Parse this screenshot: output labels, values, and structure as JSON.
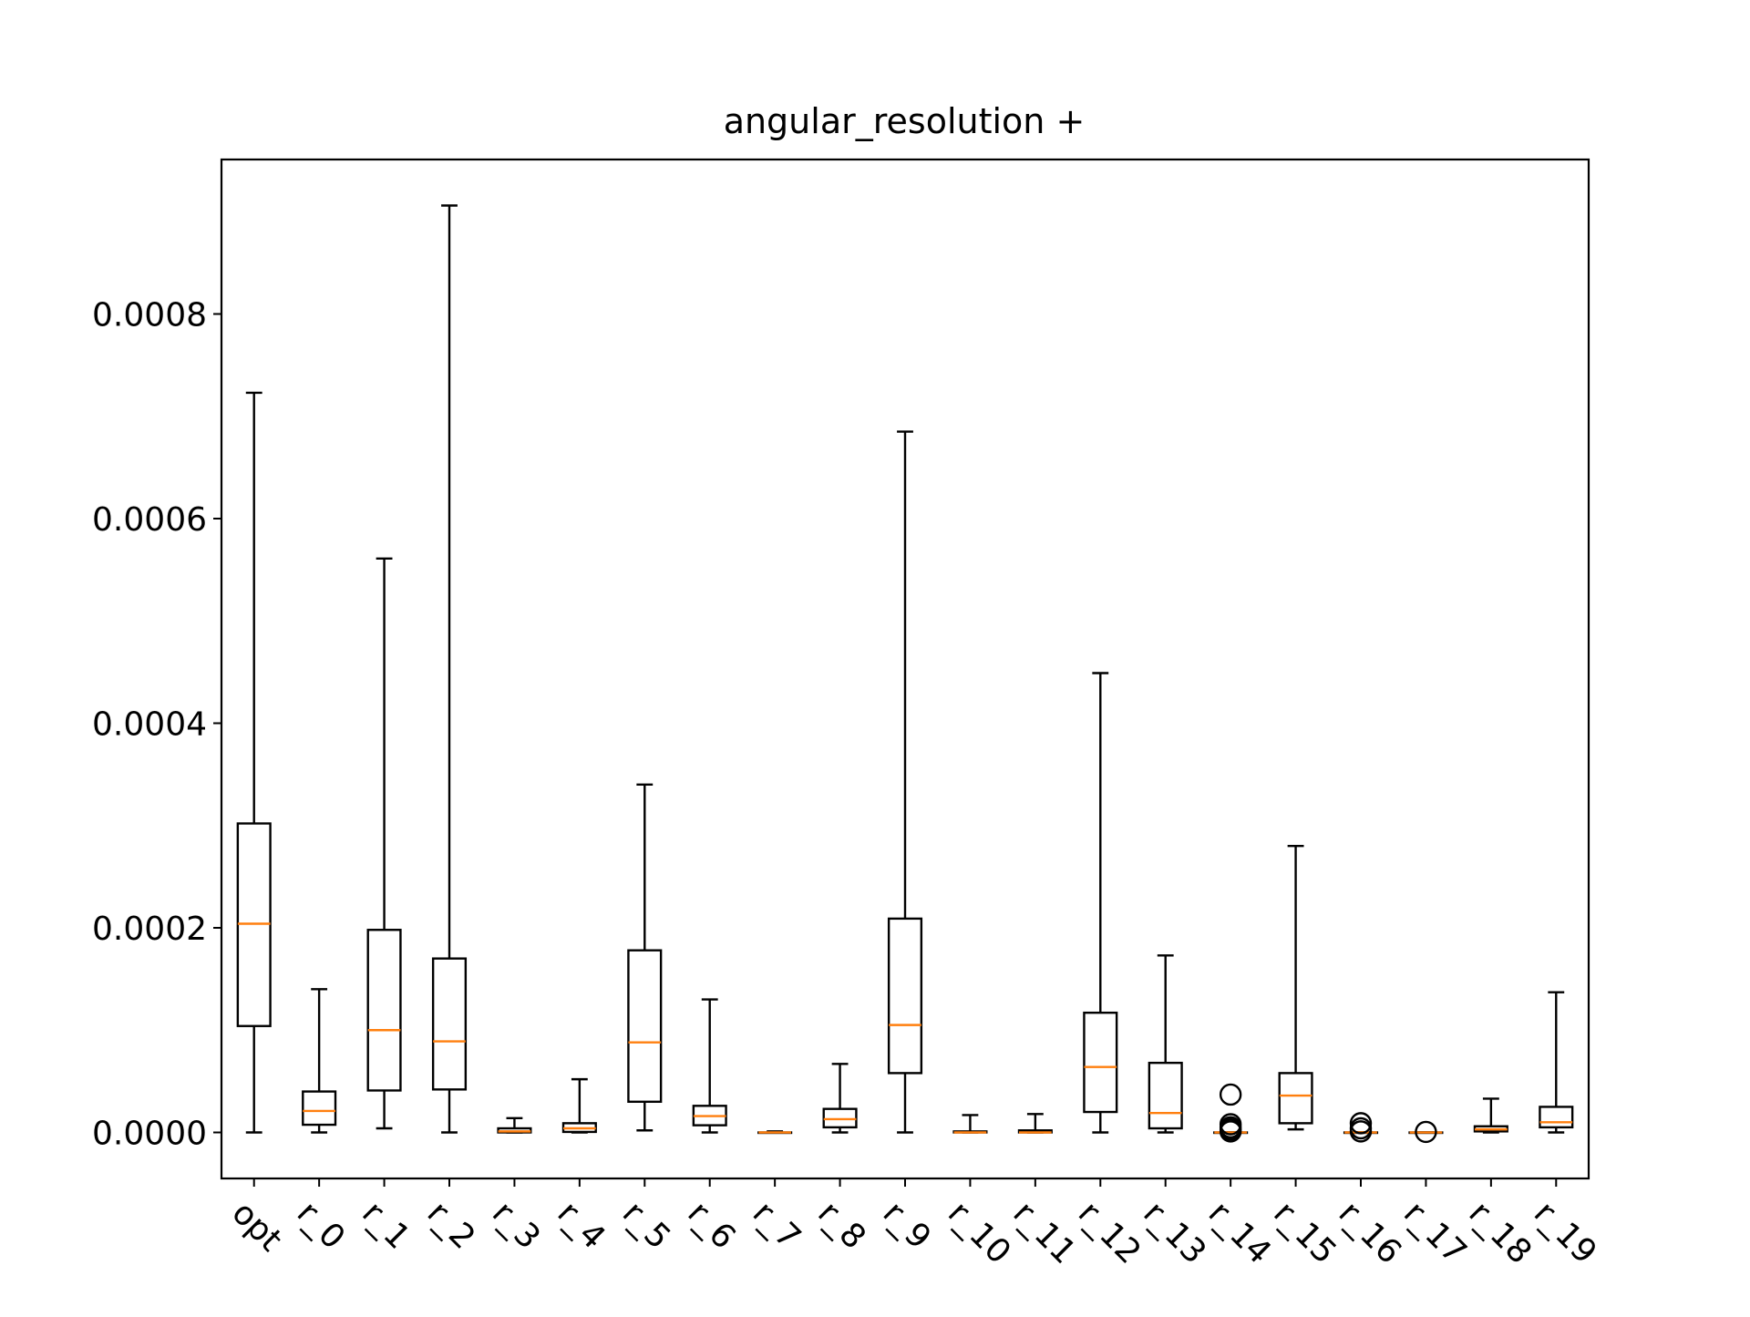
{
  "chart_data": {
    "type": "box",
    "title": "angular_resolution +",
    "xlabel": "",
    "ylabel": "",
    "ylim": [
      -4.5e-05,
      0.000951
    ],
    "yticks": [
      0,
      0.0002,
      0.0004,
      0.0006,
      0.0008
    ],
    "ytick_labels": [
      "0.0000",
      "0.0002",
      "0.0004",
      "0.0006",
      "0.0008"
    ],
    "grid": false,
    "categories": [
      "opt",
      "r_0",
      "r_1",
      "r_2",
      "r_3",
      "r_4",
      "r_5",
      "r_6",
      "r_7",
      "r_8",
      "r_9",
      "r_10",
      "r_11",
      "r_12",
      "r_13",
      "r_14",
      "r_15",
      "r_16",
      "r_17",
      "r_18",
      "r_19"
    ],
    "boxes": [
      {
        "whislo": 0.0,
        "q1": 0.000104,
        "med": 0.000204,
        "q3": 0.000302,
        "whishi": 0.000723,
        "fliers": []
      },
      {
        "whislo": 0.0,
        "q1": 7.5e-06,
        "med": 2.1e-05,
        "q3": 4e-05,
        "whishi": 0.00014,
        "fliers": []
      },
      {
        "whislo": 4e-06,
        "q1": 4.1e-05,
        "med": 0.0001,
        "q3": 0.000198,
        "whishi": 0.000561,
        "fliers": []
      },
      {
        "whislo": 0.0,
        "q1": 4.2e-05,
        "med": 8.9e-05,
        "q3": 0.00017,
        "whishi": 0.000906,
        "fliers": []
      },
      {
        "whislo": 0.0,
        "q1": 0.0,
        "med": 1e-06,
        "q3": 4e-06,
        "whishi": 1.4e-05,
        "fliers": []
      },
      {
        "whislo": 0.0,
        "q1": 5e-07,
        "med": 4e-06,
        "q3": 9e-06,
        "whishi": 5.2e-05,
        "fliers": []
      },
      {
        "whislo": 2e-06,
        "q1": 3e-05,
        "med": 8.8e-05,
        "q3": 0.000178,
        "whishi": 0.00034,
        "fliers": []
      },
      {
        "whislo": 0.0,
        "q1": 7e-06,
        "med": 1.6e-05,
        "q3": 2.6e-05,
        "whishi": 0.00013,
        "fliers": []
      },
      {
        "whislo": 0.0,
        "q1": 0.0,
        "med": 0.0,
        "q3": 0.0,
        "whishi": 1e-06,
        "fliers": []
      },
      {
        "whislo": 0.0,
        "q1": 5e-06,
        "med": 1.3e-05,
        "q3": 2.3e-05,
        "whishi": 6.7e-05,
        "fliers": []
      },
      {
        "whislo": 0.0,
        "q1": 5.8e-05,
        "med": 0.000105,
        "q3": 0.000209,
        "whishi": 0.000685,
        "fliers": []
      },
      {
        "whislo": 0.0,
        "q1": 0.0,
        "med": 0.0,
        "q3": 1e-06,
        "whishi": 1.7e-05,
        "fliers": []
      },
      {
        "whislo": 0.0,
        "q1": 0.0,
        "med": 0.0,
        "q3": 2e-06,
        "whishi": 1.8e-05,
        "fliers": []
      },
      {
        "whislo": 0.0,
        "q1": 2e-05,
        "med": 6.4e-05,
        "q3": 0.000117,
        "whishi": 0.000449,
        "fliers": []
      },
      {
        "whislo": 0.0,
        "q1": 4e-06,
        "med": 1.9e-05,
        "q3": 6.8e-05,
        "whishi": 0.000173,
        "fliers": []
      },
      {
        "whislo": 0.0,
        "q1": 0.0,
        "med": 0.0,
        "q3": 0.0,
        "whishi": 0.0,
        "fliers": [
          3.7e-05,
          8e-06,
          5e-06,
          3e-06,
          1e-06
        ]
      },
      {
        "whislo": 3e-06,
        "q1": 9e-06,
        "med": 3.6e-05,
        "q3": 5.8e-05,
        "whishi": 0.00028,
        "fliers": []
      },
      {
        "whislo": 0.0,
        "q1": 0.0,
        "med": 0.0,
        "q3": 0.0,
        "whishi": 0.0,
        "fliers": [
          9e-06,
          4e-06,
          1e-06
        ]
      },
      {
        "whislo": 0.0,
        "q1": 0.0,
        "med": 0.0,
        "q3": 0.0,
        "whishi": 0.0,
        "fliers": [
          5e-07
        ]
      },
      {
        "whislo": 0.0,
        "q1": 1e-06,
        "med": 3e-06,
        "q3": 6e-06,
        "whishi": 3.3e-05,
        "fliers": []
      },
      {
        "whislo": 0.0,
        "q1": 5e-06,
        "med": 1e-05,
        "q3": 2.5e-05,
        "whishi": 0.000137,
        "fliers": []
      }
    ],
    "colors": {
      "box": "#000000",
      "median": "#ff7f0e",
      "flier_edge": "#000000"
    }
  }
}
